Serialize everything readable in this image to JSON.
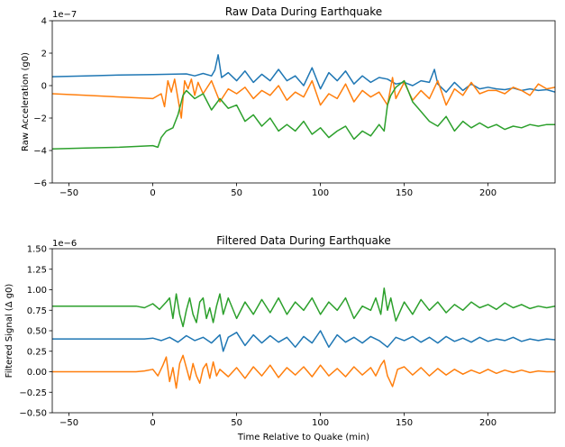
{
  "chart_data": [
    {
      "type": "line",
      "title": "Raw Data During Earthquake",
      "xlabel": "",
      "ylabel": "Raw Acceleration (g0)",
      "offset_text": "1e−7",
      "xlim": [
        -60,
        240
      ],
      "ylim": [
        -6,
        4
      ],
      "xticks": [
        -50,
        0,
        50,
        100,
        150,
        200
      ],
      "xtick_labels": [
        "−50",
        "0",
        "50",
        "100",
        "150",
        "200"
      ],
      "yticks": [
        -6,
        -4,
        -2,
        0,
        2,
        4
      ],
      "ytick_labels": [
        "−6",
        "−4",
        "−2",
        "0",
        "2",
        "4"
      ],
      "grid": false,
      "series": [
        {
          "color": "#1f77b4",
          "x": [
            -60,
            -40,
            -20,
            0,
            10,
            20,
            25,
            30,
            35,
            37,
            39,
            41,
            45,
            50,
            55,
            60,
            65,
            70,
            75,
            80,
            85,
            90,
            95,
            100,
            105,
            110,
            115,
            120,
            125,
            130,
            135,
            140,
            145,
            150,
            155,
            160,
            165,
            168,
            170,
            175,
            180,
            185,
            190,
            195,
            200,
            205,
            210,
            215,
            220,
            225,
            230,
            235,
            240
          ],
          "y": [
            0.55,
            0.6,
            0.65,
            0.68,
            0.7,
            0.72,
            0.6,
            0.75,
            0.6,
            0.95,
            1.9,
            0.5,
            0.8,
            0.3,
            0.9,
            0.2,
            0.7,
            0.3,
            1.0,
            0.3,
            0.6,
            0.0,
            1.1,
            -0.2,
            0.8,
            0.3,
            0.9,
            0.1,
            0.6,
            0.2,
            0.5,
            0.4,
            0.1,
            0.2,
            0.0,
            0.3,
            0.2,
            1.0,
            0.1,
            -0.4,
            0.2,
            -0.3,
            0.1,
            -0.2,
            -0.1,
            -0.2,
            -0.25,
            -0.15,
            -0.3,
            -0.2,
            -0.3,
            -0.25,
            -0.4
          ]
        },
        {
          "color": "#ff7f0e",
          "x": [
            -60,
            -40,
            -20,
            0,
            5,
            7,
            9,
            11,
            13,
            15,
            17,
            19,
            21,
            23,
            25,
            27,
            30,
            35,
            40,
            45,
            50,
            55,
            60,
            65,
            70,
            75,
            80,
            85,
            90,
            95,
            100,
            105,
            110,
            115,
            120,
            125,
            130,
            135,
            140,
            143,
            145,
            150,
            155,
            160,
            165,
            170,
            175,
            180,
            185,
            190,
            195,
            200,
            205,
            210,
            215,
            220,
            225,
            230,
            235,
            240
          ],
          "y": [
            -0.5,
            -0.6,
            -0.7,
            -0.8,
            -0.5,
            -1.3,
            0.3,
            -0.4,
            0.4,
            -0.8,
            -2.0,
            0.3,
            -0.2,
            0.4,
            -0.6,
            0.2,
            -0.5,
            0.3,
            -1.0,
            -0.2,
            -0.5,
            -0.1,
            -0.8,
            -0.3,
            -0.6,
            0.0,
            -0.9,
            -0.4,
            -0.7,
            0.3,
            -1.2,
            -0.5,
            -0.8,
            0.1,
            -1.0,
            -0.3,
            -0.7,
            -0.4,
            -1.2,
            0.5,
            -0.8,
            0.2,
            -0.9,
            -0.3,
            -0.8,
            0.3,
            -1.2,
            -0.2,
            -0.6,
            0.2,
            -0.5,
            -0.3,
            -0.3,
            -0.5,
            -0.1,
            -0.3,
            -0.6,
            0.1,
            -0.2,
            -0.1
          ]
        },
        {
          "color": "#2ca02c",
          "x": [
            -60,
            -40,
            -20,
            0,
            3,
            5,
            8,
            12,
            15,
            18,
            20,
            25,
            30,
            35,
            40,
            45,
            50,
            55,
            60,
            65,
            70,
            75,
            80,
            85,
            90,
            95,
            100,
            105,
            110,
            115,
            120,
            125,
            130,
            135,
            138,
            140,
            142,
            145,
            150,
            155,
            160,
            165,
            170,
            175,
            180,
            185,
            190,
            195,
            200,
            205,
            210,
            215,
            220,
            225,
            230,
            235,
            240
          ],
          "y": [
            -3.9,
            -3.85,
            -3.8,
            -3.7,
            -3.8,
            -3.2,
            -2.8,
            -2.6,
            -1.8,
            -0.6,
            -0.3,
            -0.8,
            -0.5,
            -1.5,
            -0.8,
            -1.4,
            -1.2,
            -2.2,
            -1.8,
            -2.5,
            -2.0,
            -2.8,
            -2.4,
            -2.8,
            -2.2,
            -3.0,
            -2.6,
            -3.2,
            -2.8,
            -2.5,
            -3.3,
            -2.8,
            -3.1,
            -2.4,
            -2.8,
            -1.2,
            -0.6,
            -0.1,
            0.3,
            -1.0,
            -1.6,
            -2.2,
            -2.5,
            -1.9,
            -2.8,
            -2.2,
            -2.6,
            -2.3,
            -2.6,
            -2.4,
            -2.7,
            -2.5,
            -2.6,
            -2.4,
            -2.5,
            -2.4,
            -2.4
          ]
        }
      ]
    },
    {
      "type": "line",
      "title": "Filtered Data During Earthquake",
      "xlabel": "Time Relative to Quake (min)",
      "ylabel": "Filtered Signal (Δ g0)",
      "offset_text": "1e−6",
      "xlim": [
        -60,
        240
      ],
      "ylim": [
        -0.5,
        1.5
      ],
      "xticks": [
        -50,
        0,
        50,
        100,
        150,
        200
      ],
      "xtick_labels": [
        "−50",
        "0",
        "50",
        "100",
        "150",
        "200"
      ],
      "yticks": [
        -0.5,
        -0.25,
        0.0,
        0.25,
        0.5,
        0.75,
        1.0,
        1.25,
        1.5
      ],
      "ytick_labels": [
        "−0.50",
        "−0.25",
        "0.00",
        "0.25",
        "0.50",
        "0.75",
        "1.00",
        "1.25",
        "1.50"
      ],
      "grid": false,
      "series": [
        {
          "color": "#2ca02c",
          "x": [
            -60,
            -20,
            -10,
            -5,
            0,
            4,
            8,
            10,
            12,
            14,
            16,
            18,
            20,
            22,
            24,
            26,
            28,
            30,
            32,
            34,
            36,
            38,
            40,
            42,
            45,
            50,
            55,
            60,
            65,
            70,
            75,
            80,
            85,
            90,
            95,
            100,
            105,
            110,
            115,
            120,
            125,
            130,
            133,
            136,
            138,
            140,
            142,
            145,
            150,
            155,
            160,
            165,
            170,
            175,
            180,
            185,
            190,
            195,
            200,
            205,
            210,
            215,
            220,
            225,
            230,
            235,
            240
          ],
          "y": [
            0.8,
            0.8,
            0.8,
            0.78,
            0.83,
            0.76,
            0.85,
            0.9,
            0.65,
            0.95,
            0.7,
            0.55,
            0.75,
            0.9,
            0.7,
            0.6,
            0.85,
            0.9,
            0.65,
            0.78,
            0.6,
            0.8,
            0.95,
            0.7,
            0.9,
            0.65,
            0.85,
            0.7,
            0.88,
            0.72,
            0.9,
            0.7,
            0.85,
            0.75,
            0.9,
            0.7,
            0.85,
            0.75,
            0.9,
            0.65,
            0.8,
            0.75,
            0.9,
            0.7,
            1.02,
            0.75,
            0.9,
            0.62,
            0.85,
            0.7,
            0.88,
            0.75,
            0.85,
            0.72,
            0.82,
            0.75,
            0.85,
            0.78,
            0.82,
            0.76,
            0.84,
            0.78,
            0.82,
            0.77,
            0.8,
            0.78,
            0.8
          ]
        },
        {
          "color": "#1f77b4",
          "x": [
            -60,
            -20,
            -10,
            -5,
            0,
            5,
            10,
            15,
            20,
            25,
            30,
            35,
            40,
            42,
            45,
            50,
            55,
            60,
            65,
            70,
            75,
            80,
            85,
            90,
            95,
            100,
            105,
            110,
            115,
            120,
            125,
            130,
            135,
            140,
            145,
            150,
            155,
            160,
            165,
            170,
            175,
            180,
            185,
            190,
            195,
            200,
            205,
            210,
            215,
            220,
            225,
            230,
            235,
            240
          ],
          "y": [
            0.4,
            0.4,
            0.4,
            0.4,
            0.41,
            0.38,
            0.42,
            0.36,
            0.44,
            0.38,
            0.42,
            0.35,
            0.45,
            0.25,
            0.42,
            0.48,
            0.32,
            0.45,
            0.35,
            0.44,
            0.36,
            0.42,
            0.3,
            0.43,
            0.35,
            0.5,
            0.3,
            0.45,
            0.36,
            0.42,
            0.35,
            0.43,
            0.38,
            0.3,
            0.42,
            0.38,
            0.43,
            0.36,
            0.42,
            0.35,
            0.43,
            0.37,
            0.41,
            0.36,
            0.42,
            0.37,
            0.4,
            0.38,
            0.42,
            0.37,
            0.4,
            0.38,
            0.4,
            0.39
          ]
        },
        {
          "color": "#ff7f0e",
          "x": [
            -60,
            -20,
            -10,
            -5,
            0,
            3,
            6,
            8,
            10,
            12,
            14,
            16,
            18,
            20,
            22,
            24,
            26,
            28,
            30,
            32,
            34,
            36,
            38,
            40,
            45,
            50,
            55,
            60,
            65,
            70,
            75,
            80,
            85,
            90,
            95,
            100,
            105,
            110,
            115,
            120,
            125,
            130,
            133,
            136,
            138,
            140,
            143,
            146,
            150,
            155,
            160,
            165,
            170,
            175,
            180,
            185,
            190,
            195,
            200,
            205,
            210,
            215,
            220,
            225,
            230,
            235,
            240
          ],
          "y": [
            0.0,
            0.0,
            0.0,
            0.01,
            0.03,
            -0.05,
            0.08,
            0.18,
            -0.12,
            0.05,
            -0.2,
            0.1,
            0.2,
            0.05,
            -0.1,
            0.1,
            -0.05,
            -0.14,
            0.04,
            0.1,
            -0.08,
            0.12,
            -0.05,
            0.03,
            -0.06,
            0.05,
            -0.08,
            0.06,
            -0.05,
            0.08,
            -0.07,
            0.05,
            -0.04,
            0.06,
            -0.06,
            0.08,
            -0.05,
            0.04,
            -0.06,
            0.06,
            -0.04,
            0.05,
            -0.05,
            0.08,
            0.14,
            -0.05,
            -0.18,
            0.03,
            0.06,
            -0.04,
            0.05,
            -0.05,
            0.04,
            -0.04,
            0.03,
            -0.03,
            0.02,
            -0.02,
            0.03,
            -0.02,
            0.02,
            -0.01,
            0.02,
            -0.01,
            0.01,
            0.0,
            0.0
          ]
        }
      ]
    }
  ]
}
